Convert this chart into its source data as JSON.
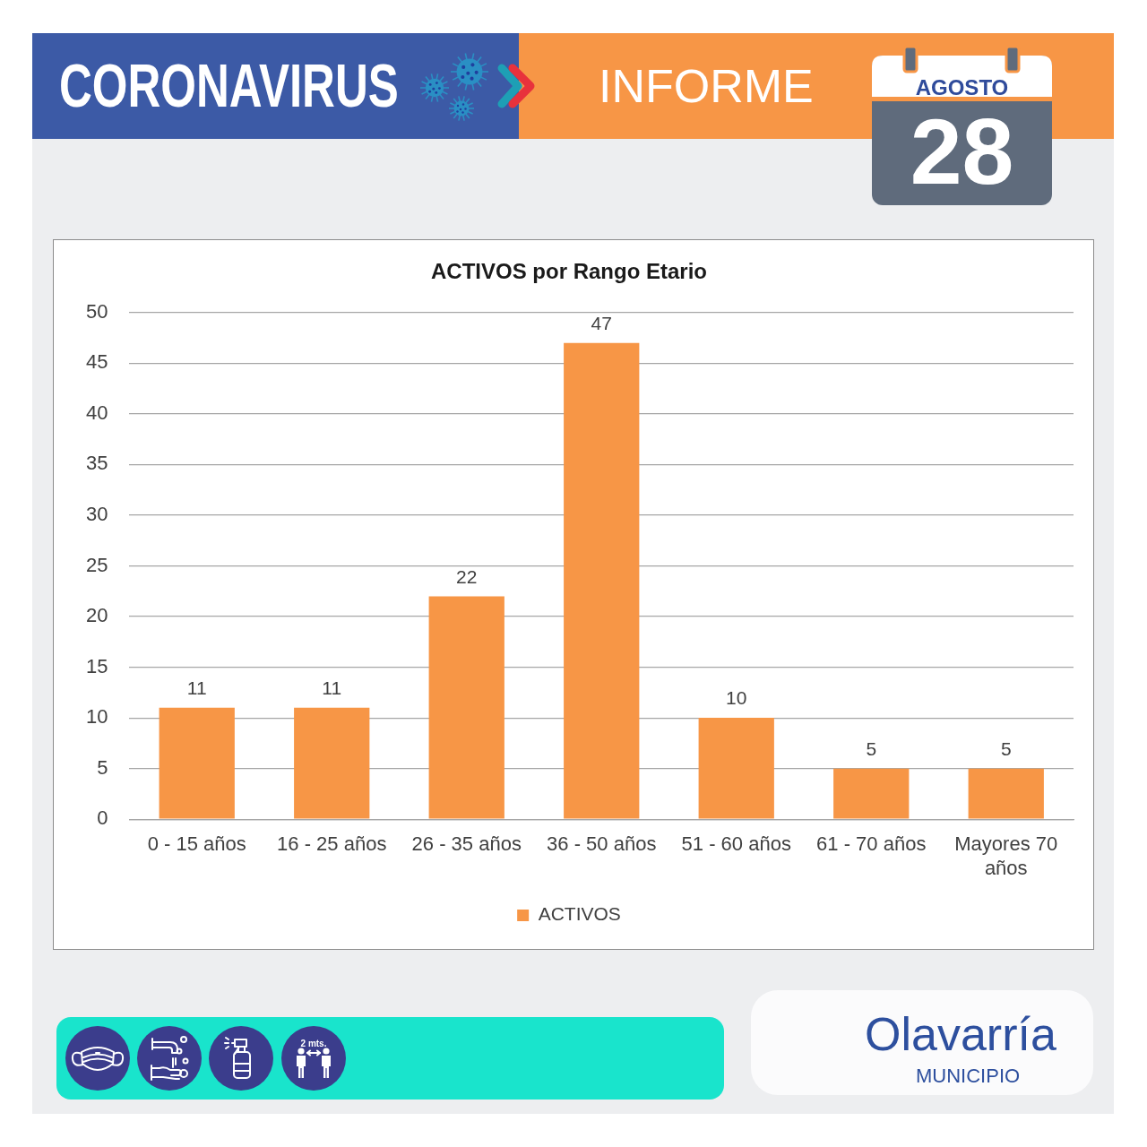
{
  "chart_data": {
    "type": "bar",
    "title": "ACTIVOS por Rango Etario",
    "categories": [
      "0 - 15 años",
      "16 - 25 años",
      "26 - 35 años",
      "36 - 50 años",
      "51 - 60 años",
      "61 - 70 años",
      "Mayores 70 años"
    ],
    "series": [
      {
        "name": "ACTIVOS",
        "color": "#f79646",
        "values": [
          11,
          11,
          22,
          47,
          10,
          5,
          5
        ]
      }
    ],
    "ylim": [
      0,
      50
    ],
    "yticks": [
      0,
      5,
      10,
      15,
      20,
      25,
      30,
      35,
      40,
      45,
      50
    ],
    "grid": "y",
    "legend": "bottom",
    "data_labels": true,
    "annotations": [
      "CORONAVIRUS",
      "INFORME",
      "AGOSTO",
      "28",
      "2 mts.",
      "Olavarría",
      "MUNICIPIO"
    ]
  }
}
